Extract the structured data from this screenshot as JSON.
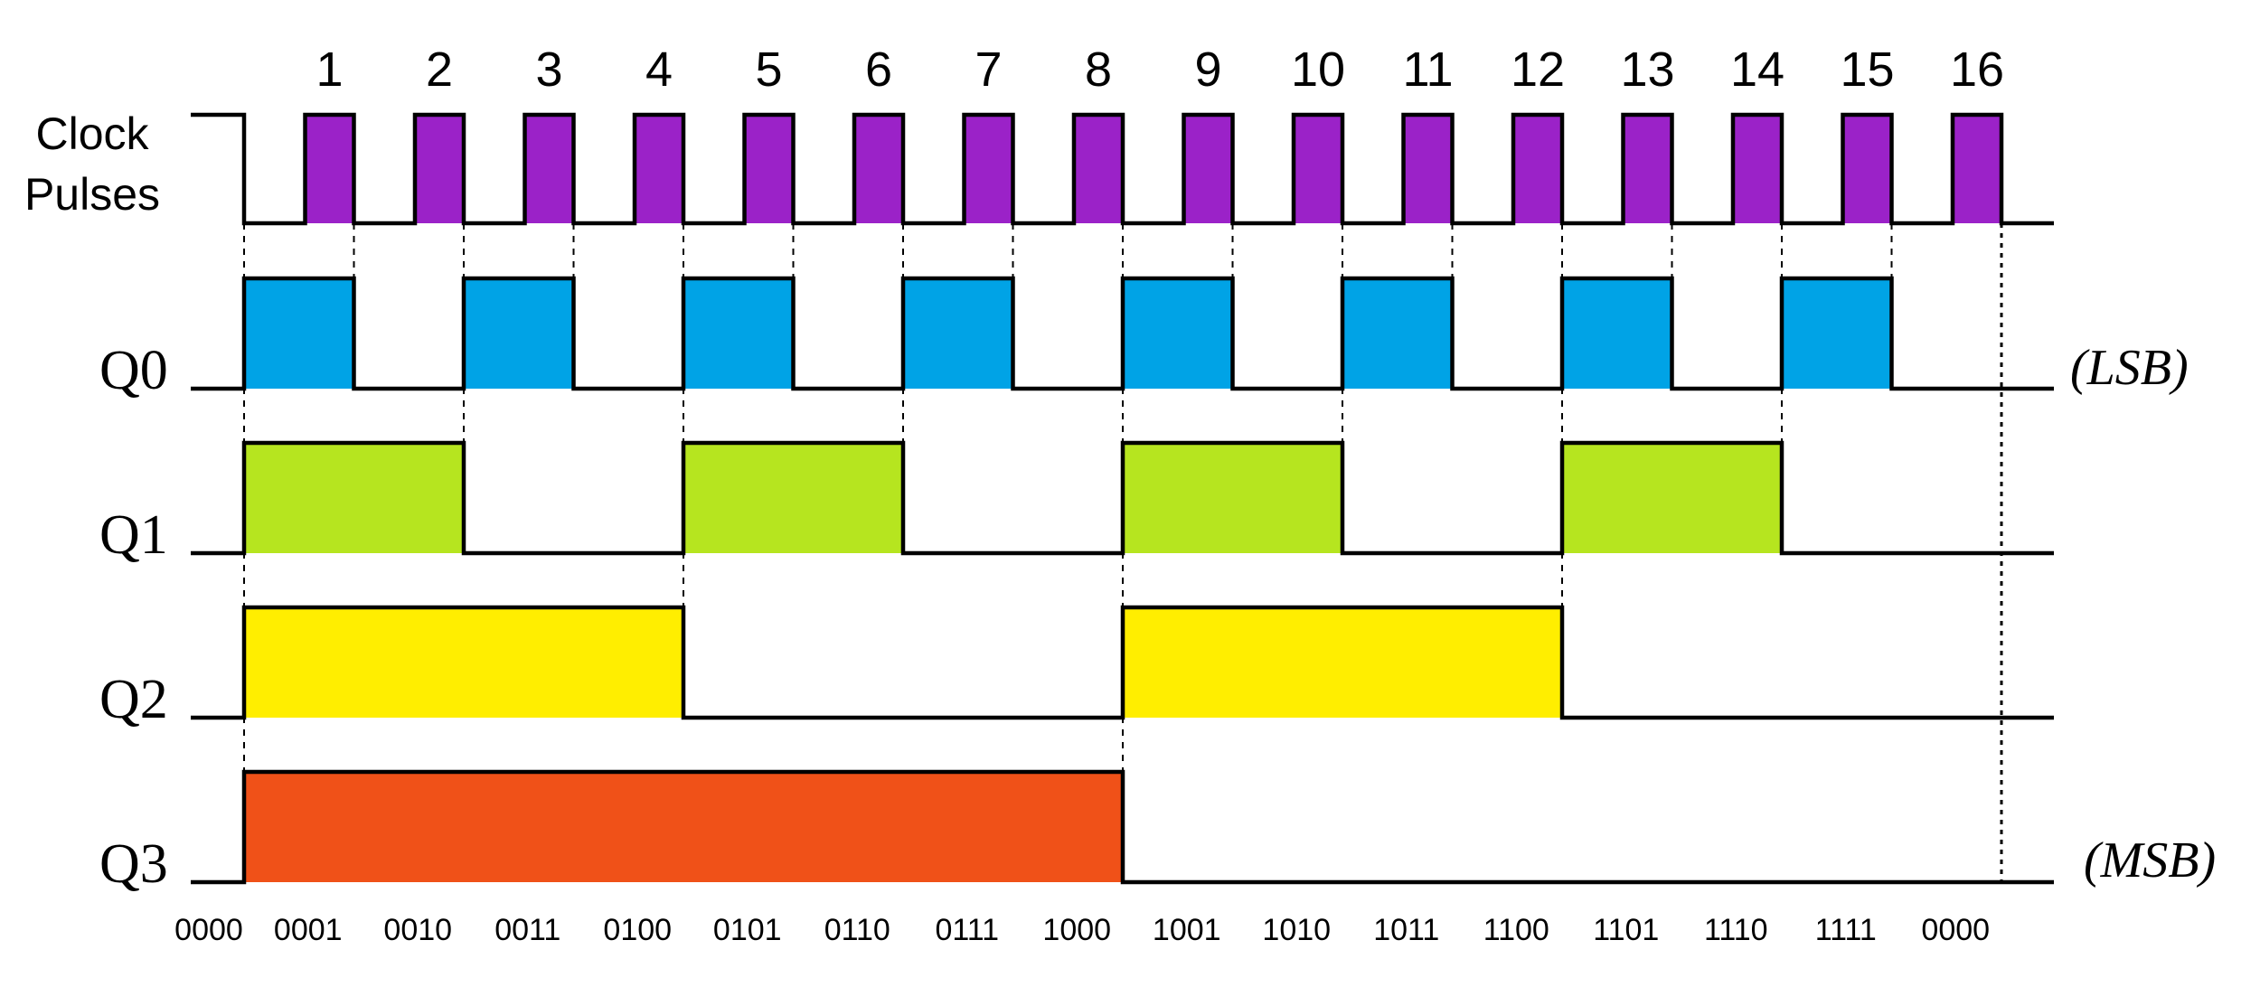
{
  "diagram": {
    "clock": {
      "label_line1": "Clock",
      "label_line2": "Pulses",
      "pulse_numbers": [
        "1",
        "2",
        "3",
        "4",
        "5",
        "6",
        "7",
        "8",
        "9",
        "10",
        "11",
        "12",
        "13",
        "14",
        "15",
        "16"
      ],
      "pulse_color": "#9b22c8"
    },
    "signals": [
      {
        "name": "Q0",
        "tag": "(LSB)",
        "color": "#00a3e6",
        "period": 2
      },
      {
        "name": "Q1",
        "tag": "",
        "color": "#b6e51f",
        "period": 4
      },
      {
        "name": "Q2",
        "tag": "",
        "color": "#ffee00",
        "period": 8
      },
      {
        "name": "Q3",
        "tag": "(MSB)",
        "color": "#f05118",
        "period": 16
      }
    ],
    "states": [
      "0000",
      "0001",
      "0010",
      "0011",
      "0100",
      "0101",
      "0110",
      "0111",
      "1000",
      "1001",
      "1010",
      "1011",
      "1100",
      "1101",
      "1110",
      "1111",
      "0000"
    ]
  }
}
